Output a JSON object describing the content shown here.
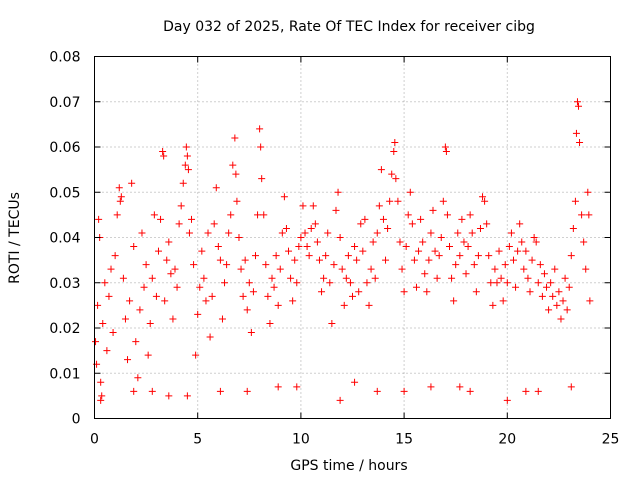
{
  "chart_data": {
    "type": "scatter",
    "title": "Day 032 of 2025, Rate Of TEC Index for receiver cibg",
    "xlabel": "GPS time / hours",
    "ylabel": "ROTI / TECUs",
    "xlim": [
      0,
      25
    ],
    "ylim": [
      0,
      0.08
    ],
    "xticks": [
      0,
      5,
      10,
      15,
      20,
      25
    ],
    "yticks": [
      0,
      0.01,
      0.02,
      0.03,
      0.04,
      0.05,
      0.06,
      0.07,
      0.08
    ],
    "xtick_labels": [
      "0",
      "5",
      "10",
      "15",
      "20",
      "25"
    ],
    "ytick_labels": [
      "0",
      "0.01",
      "0.02",
      "0.03",
      "0.04",
      "0.05",
      "0.06",
      "0.07",
      "0.08"
    ],
    "grid": true,
    "marker": "+",
    "color": "#ff0000",
    "series": [
      {
        "name": "ROTI",
        "points": [
          [
            0.05,
            0.017
          ],
          [
            0.1,
            0.012
          ],
          [
            0.15,
            0.025
          ],
          [
            0.2,
            0.044
          ],
          [
            0.25,
            0.04
          ],
          [
            0.3,
            0.008
          ],
          [
            0.35,
            0.005
          ],
          [
            0.4,
            0.021
          ],
          [
            0.5,
            0.03
          ],
          [
            0.6,
            0.015
          ],
          [
            0.7,
            0.027
          ],
          [
            0.8,
            0.033
          ],
          [
            0.9,
            0.019
          ],
          [
            1.0,
            0.036
          ],
          [
            1.1,
            0.045
          ],
          [
            1.2,
            0.051
          ],
          [
            1.25,
            0.048
          ],
          [
            1.3,
            0.049
          ],
          [
            1.4,
            0.031
          ],
          [
            1.5,
            0.022
          ],
          [
            1.6,
            0.013
          ],
          [
            1.7,
            0.026
          ],
          [
            1.8,
            0.052
          ],
          [
            1.9,
            0.038
          ],
          [
            2.0,
            0.017
          ],
          [
            2.1,
            0.009
          ],
          [
            2.2,
            0.024
          ],
          [
            2.3,
            0.041
          ],
          [
            2.4,
            0.029
          ],
          [
            2.5,
            0.034
          ],
          [
            2.6,
            0.014
          ],
          [
            2.7,
            0.021
          ],
          [
            2.8,
            0.031
          ],
          [
            2.9,
            0.045
          ],
          [
            3.0,
            0.027
          ],
          [
            3.1,
            0.037
          ],
          [
            3.2,
            0.044
          ],
          [
            3.3,
            0.059
          ],
          [
            3.35,
            0.058
          ],
          [
            3.4,
            0.026
          ],
          [
            3.5,
            0.035
          ],
          [
            3.6,
            0.039
          ],
          [
            3.7,
            0.032
          ],
          [
            3.8,
            0.022
          ],
          [
            3.9,
            0.033
          ],
          [
            4.0,
            0.029
          ],
          [
            4.1,
            0.043
          ],
          [
            4.2,
            0.047
          ],
          [
            4.3,
            0.052
          ],
          [
            4.4,
            0.056
          ],
          [
            4.45,
            0.06
          ],
          [
            4.5,
            0.058
          ],
          [
            4.55,
            0.055
          ],
          [
            4.6,
            0.041
          ],
          [
            4.7,
            0.044
          ],
          [
            4.8,
            0.034
          ],
          [
            4.9,
            0.014
          ],
          [
            5.0,
            0.023
          ],
          [
            5.1,
            0.029
          ],
          [
            5.2,
            0.037
          ],
          [
            5.3,
            0.031
          ],
          [
            5.4,
            0.026
          ],
          [
            5.5,
            0.041
          ],
          [
            5.6,
            0.018
          ],
          [
            5.7,
            0.027
          ],
          [
            5.8,
            0.043
          ],
          [
            5.9,
            0.051
          ],
          [
            6.0,
            0.038
          ],
          [
            6.1,
            0.035
          ],
          [
            6.2,
            0.022
          ],
          [
            6.3,
            0.03
          ],
          [
            6.4,
            0.034
          ],
          [
            6.5,
            0.041
          ],
          [
            6.6,
            0.045
          ],
          [
            6.7,
            0.056
          ],
          [
            6.8,
            0.062
          ],
          [
            6.85,
            0.054
          ],
          [
            6.9,
            0.048
          ],
          [
            7.0,
            0.04
          ],
          [
            7.1,
            0.033
          ],
          [
            7.2,
            0.027
          ],
          [
            7.3,
            0.035
          ],
          [
            7.4,
            0.024
          ],
          [
            7.5,
            0.03
          ],
          [
            7.6,
            0.019
          ],
          [
            7.7,
            0.028
          ],
          [
            7.8,
            0.036
          ],
          [
            7.9,
            0.045
          ],
          [
            8.0,
            0.064
          ],
          [
            8.05,
            0.06
          ],
          [
            8.1,
            0.053
          ],
          [
            8.2,
            0.045
          ],
          [
            8.3,
            0.034
          ],
          [
            8.4,
            0.027
          ],
          [
            8.5,
            0.021
          ],
          [
            8.6,
            0.031
          ],
          [
            8.7,
            0.029
          ],
          [
            8.8,
            0.036
          ],
          [
            8.9,
            0.025
          ],
          [
            9.0,
            0.033
          ],
          [
            9.1,
            0.041
          ],
          [
            9.2,
            0.049
          ],
          [
            9.3,
            0.042
          ],
          [
            9.4,
            0.037
          ],
          [
            9.5,
            0.031
          ],
          [
            9.6,
            0.026
          ],
          [
            9.7,
            0.035
          ],
          [
            9.8,
            0.03
          ],
          [
            9.9,
            0.038
          ],
          [
            10.0,
            0.04
          ],
          [
            10.1,
            0.047
          ],
          [
            10.2,
            0.041
          ],
          [
            10.3,
            0.038
          ],
          [
            10.4,
            0.036
          ],
          [
            10.5,
            0.042
          ],
          [
            10.6,
            0.047
          ],
          [
            10.7,
            0.043
          ],
          [
            10.8,
            0.039
          ],
          [
            10.9,
            0.035
          ],
          [
            11.0,
            0.028
          ],
          [
            11.1,
            0.031
          ],
          [
            11.2,
            0.036
          ],
          [
            11.3,
            0.041
          ],
          [
            11.4,
            0.03
          ],
          [
            11.5,
            0.021
          ],
          [
            11.6,
            0.034
          ],
          [
            11.7,
            0.046
          ],
          [
            11.8,
            0.05
          ],
          [
            11.9,
            0.04
          ],
          [
            12.0,
            0.033
          ],
          [
            12.1,
            0.025
          ],
          [
            12.2,
            0.031
          ],
          [
            12.3,
            0.036
          ],
          [
            12.4,
            0.03
          ],
          [
            12.5,
            0.027
          ],
          [
            12.6,
            0.038
          ],
          [
            12.7,
            0.035
          ],
          [
            12.8,
            0.028
          ],
          [
            12.9,
            0.043
          ],
          [
            13.0,
            0.037
          ],
          [
            13.1,
            0.044
          ],
          [
            13.2,
            0.03
          ],
          [
            13.3,
            0.025
          ],
          [
            13.4,
            0.033
          ],
          [
            13.5,
            0.039
          ],
          [
            13.6,
            0.031
          ],
          [
            13.7,
            0.041
          ],
          [
            13.8,
            0.047
          ],
          [
            13.9,
            0.055
          ],
          [
            14.0,
            0.044
          ],
          [
            14.1,
            0.035
          ],
          [
            14.2,
            0.042
          ],
          [
            14.3,
            0.048
          ],
          [
            14.4,
            0.054
          ],
          [
            14.5,
            0.059
          ],
          [
            14.55,
            0.061
          ],
          [
            14.6,
            0.053
          ],
          [
            14.7,
            0.048
          ],
          [
            14.8,
            0.039
          ],
          [
            14.9,
            0.033
          ],
          [
            15.0,
            0.028
          ],
          [
            15.1,
            0.038
          ],
          [
            15.2,
            0.045
          ],
          [
            15.3,
            0.05
          ],
          [
            15.4,
            0.043
          ],
          [
            15.5,
            0.035
          ],
          [
            15.6,
            0.029
          ],
          [
            15.7,
            0.037
          ],
          [
            15.8,
            0.044
          ],
          [
            15.9,
            0.039
          ],
          [
            16.0,
            0.032
          ],
          [
            16.1,
            0.028
          ],
          [
            16.2,
            0.035
          ],
          [
            16.3,
            0.041
          ],
          [
            16.4,
            0.046
          ],
          [
            16.5,
            0.037
          ],
          [
            16.6,
            0.031
          ],
          [
            16.7,
            0.036
          ],
          [
            16.8,
            0.04
          ],
          [
            16.9,
            0.048
          ],
          [
            17.0,
            0.06
          ],
          [
            17.05,
            0.059
          ],
          [
            17.1,
            0.045
          ],
          [
            17.2,
            0.038
          ],
          [
            17.3,
            0.031
          ],
          [
            17.4,
            0.026
          ],
          [
            17.5,
            0.034
          ],
          [
            17.6,
            0.041
          ],
          [
            17.7,
            0.036
          ],
          [
            17.8,
            0.044
          ],
          [
            17.9,
            0.039
          ],
          [
            18.0,
            0.032
          ],
          [
            18.1,
            0.038
          ],
          [
            18.2,
            0.045
          ],
          [
            18.3,
            0.041
          ],
          [
            18.4,
            0.034
          ],
          [
            18.5,
            0.028
          ],
          [
            18.6,
            0.036
          ],
          [
            18.7,
            0.042
          ],
          [
            18.8,
            0.049
          ],
          [
            18.9,
            0.048
          ],
          [
            19.0,
            0.043
          ],
          [
            19.1,
            0.036
          ],
          [
            19.2,
            0.03
          ],
          [
            19.3,
            0.025
          ],
          [
            19.4,
            0.033
          ],
          [
            19.5,
            0.03
          ],
          [
            19.6,
            0.037
          ],
          [
            19.7,
            0.031
          ],
          [
            19.8,
            0.026
          ],
          [
            19.9,
            0.034
          ],
          [
            20.0,
            0.03
          ],
          [
            20.1,
            0.038
          ],
          [
            20.2,
            0.041
          ],
          [
            20.3,
            0.035
          ],
          [
            20.4,
            0.029
          ],
          [
            20.5,
            0.037
          ],
          [
            20.6,
            0.043
          ],
          [
            20.7,
            0.039
          ],
          [
            20.8,
            0.033
          ],
          [
            20.9,
            0.037
          ],
          [
            21.0,
            0.031
          ],
          [
            21.1,
            0.028
          ],
          [
            21.2,
            0.035
          ],
          [
            21.3,
            0.04
          ],
          [
            21.4,
            0.039
          ],
          [
            21.5,
            0.03
          ],
          [
            21.6,
            0.034
          ],
          [
            21.7,
            0.027
          ],
          [
            21.8,
            0.032
          ],
          [
            21.9,
            0.029
          ],
          [
            22.0,
            0.024
          ],
          [
            22.1,
            0.03
          ],
          [
            22.2,
            0.027
          ],
          [
            22.3,
            0.033
          ],
          [
            22.4,
            0.025
          ],
          [
            22.5,
            0.028
          ],
          [
            22.6,
            0.022
          ],
          [
            22.7,
            0.026
          ],
          [
            22.8,
            0.031
          ],
          [
            22.9,
            0.024
          ],
          [
            23.0,
            0.029
          ],
          [
            23.1,
            0.036
          ],
          [
            23.2,
            0.042
          ],
          [
            23.3,
            0.048
          ],
          [
            23.35,
            0.063
          ],
          [
            23.4,
            0.07
          ],
          [
            23.45,
            0.069
          ],
          [
            23.5,
            0.061
          ],
          [
            23.6,
            0.045
          ],
          [
            23.7,
            0.039
          ],
          [
            23.8,
            0.033
          ],
          [
            23.9,
            0.05
          ],
          [
            23.95,
            0.045
          ],
          [
            24.0,
            0.026
          ],
          [
            0.3,
            0.004
          ],
          [
            1.9,
            0.006
          ],
          [
            3.6,
            0.005
          ],
          [
            6.1,
            0.006
          ],
          [
            8.9,
            0.007
          ],
          [
            11.9,
            0.004
          ],
          [
            13.7,
            0.006
          ],
          [
            16.3,
            0.007
          ],
          [
            18.2,
            0.006
          ],
          [
            20.0,
            0.004
          ],
          [
            21.5,
            0.006
          ],
          [
            23.1,
            0.007
          ],
          [
            4.5,
            0.005
          ],
          [
            15.0,
            0.006
          ],
          [
            9.8,
            0.007
          ],
          [
            2.8,
            0.006
          ],
          [
            17.7,
            0.007
          ],
          [
            20.9,
            0.006
          ],
          [
            7.4,
            0.006
          ],
          [
            12.6,
            0.008
          ]
        ]
      }
    ]
  }
}
